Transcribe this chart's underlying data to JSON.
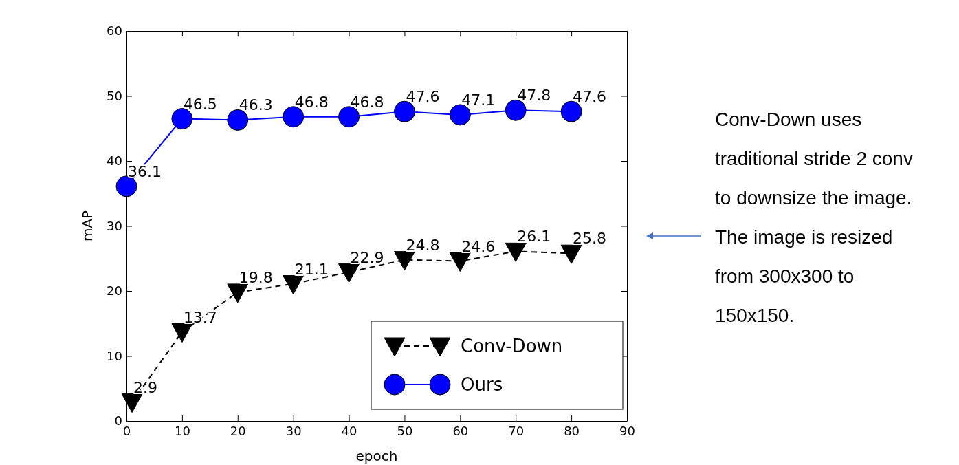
{
  "chart_data": {
    "type": "line",
    "xlabel": "epoch",
    "ylabel": "mAP",
    "xlim": [
      0,
      90
    ],
    "ylim": [
      0,
      60
    ],
    "xticks": [
      0,
      10,
      20,
      30,
      40,
      50,
      60,
      70,
      80,
      90
    ],
    "yticks": [
      0,
      10,
      20,
      30,
      40,
      50,
      60
    ],
    "grid": false,
    "legend": "bottom right",
    "data_labels": true,
    "series": [
      {
        "name": "Conv-Down",
        "color": "#000000",
        "marker": "triangle",
        "line_style": "dashed",
        "x": [
          1,
          10,
          20,
          30,
          40,
          50,
          60,
          70,
          80
        ],
        "values": [
          2.9,
          13.7,
          19.8,
          21.1,
          22.9,
          24.8,
          24.6,
          26.1,
          25.8
        ]
      },
      {
        "name": "Ours",
        "color": "#0000ff",
        "marker": "circle",
        "line_style": "solid",
        "x": [
          0,
          10,
          20,
          30,
          40,
          50,
          60,
          70,
          80
        ],
        "values": [
          36.1,
          46.5,
          46.3,
          46.8,
          46.8,
          47.6,
          47.1,
          47.8,
          47.6
        ]
      }
    ],
    "annotations": [
      "Conv-Down uses traditional stride 2 conv to downsize the image. The image is resized from 300x300 to 150x150."
    ]
  }
}
